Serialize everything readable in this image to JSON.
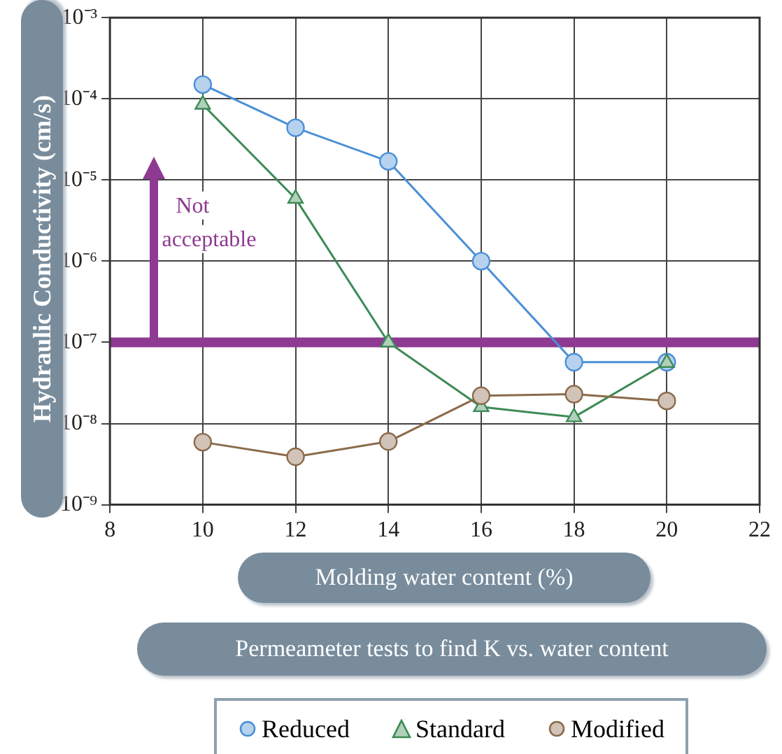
{
  "chart_data": {
    "type": "line",
    "title": "Permeameter tests to find K vs. water content",
    "xlabel": "Molding water content (%)",
    "ylabel": "Hydraulic Conductivity (cm/s)",
    "x": [
      10,
      12,
      14,
      16,
      18,
      20
    ],
    "series": [
      {
        "name": "Reduced",
        "color": "#4a8fd6",
        "marker": "circle",
        "values": [
          0.00015,
          4.4e-05,
          1.7e-05,
          1e-06,
          5.7e-08,
          5.7e-08
        ]
      },
      {
        "name": "Standard",
        "color": "#3d8a55",
        "marker": "triangle",
        "values": [
          8.5e-05,
          5.9e-06,
          1e-07,
          1.6e-08,
          1.2e-08,
          5.6e-08
        ]
      },
      {
        "name": "Modified",
        "color": "#8b6a4a",
        "marker": "circle",
        "values": [
          5.9e-09,
          3.9e-09,
          6e-09,
          2.2e-08,
          2.3e-08,
          1.9e-08
        ]
      }
    ],
    "log": "y",
    "xlim": [
      8,
      22
    ],
    "xticks": [
      8,
      10,
      12,
      14,
      16,
      18,
      20,
      22
    ],
    "ylim": [
      1e-09,
      0.001
    ],
    "yticks": [
      {
        "value": 1e-09,
        "label": "10⁻⁹"
      },
      {
        "value": 1e-08,
        "label": "10⁻⁸"
      },
      {
        "value": 1e-07,
        "label": "10⁻⁷"
      },
      {
        "value": 1e-06,
        "label": "10⁻⁶"
      },
      {
        "value": 1e-05,
        "label": "10⁻⁵"
      },
      {
        "value": 0.0001,
        "label": "10⁻⁴"
      },
      {
        "value": 0.001,
        "label": "10⁻³"
      }
    ],
    "ref_lines": [
      {
        "axis": "y",
        "value": 1e-07,
        "color": "#8e3a92"
      }
    ],
    "annotations": [
      "Not acceptable"
    ],
    "grid": true,
    "legend": "bottom",
    "line_style": "solid"
  }
}
